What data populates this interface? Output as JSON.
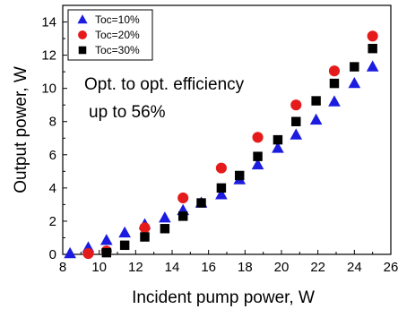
{
  "chart_data": {
    "type": "scatter",
    "xlabel": "Incident pump power, W",
    "ylabel": "Output power, W",
    "xlim": [
      8,
      26
    ],
    "ylim": [
      0,
      15
    ],
    "xticks": [
      "8",
      "10",
      "12",
      "14",
      "16",
      "18",
      "20",
      "22",
      "24",
      "26"
    ],
    "yticks": [
      "0",
      "2",
      "4",
      "6",
      "8",
      "10",
      "12",
      "14"
    ],
    "grid": false,
    "legend_position": "top-left",
    "annotation_lines": [
      "Opt. to opt. efficiency",
      "up to 56%"
    ],
    "series": [
      {
        "name": "Toc=10%",
        "marker": "triangle",
        "color": "#1c1ce0",
        "points": [
          [
            8.4,
            0.05
          ],
          [
            9.4,
            0.4
          ],
          [
            10.4,
            0.85
          ],
          [
            11.4,
            1.3
          ],
          [
            12.5,
            1.8
          ],
          [
            13.6,
            2.2
          ],
          [
            14.6,
            2.65
          ],
          [
            15.6,
            3.1
          ],
          [
            16.7,
            3.6
          ],
          [
            17.7,
            4.5
          ],
          [
            18.7,
            5.4
          ],
          [
            19.8,
            6.4
          ],
          [
            20.8,
            7.2
          ],
          [
            21.9,
            8.1
          ],
          [
            22.9,
            9.2
          ],
          [
            24.0,
            10.3
          ],
          [
            25.0,
            11.3
          ]
        ]
      },
      {
        "name": "Toc=20%",
        "marker": "circle",
        "color": "#e51b1b",
        "points": [
          [
            9.4,
            0.05
          ],
          [
            10.4,
            0.2
          ],
          [
            12.5,
            1.6
          ],
          [
            14.6,
            3.4
          ],
          [
            16.7,
            5.2
          ],
          [
            18.7,
            7.05
          ],
          [
            20.8,
            9.0
          ],
          [
            22.9,
            11.05
          ],
          [
            25.0,
            13.15
          ]
        ]
      },
      {
        "name": "Toc=30%",
        "marker": "square",
        "color": "#000000",
        "points": [
          [
            10.4,
            0.1
          ],
          [
            11.4,
            0.55
          ],
          [
            12.5,
            1.05
          ],
          [
            13.6,
            1.55
          ],
          [
            14.6,
            2.3
          ],
          [
            15.6,
            3.1
          ],
          [
            16.7,
            4.0
          ],
          [
            17.7,
            4.75
          ],
          [
            18.7,
            5.9
          ],
          [
            19.8,
            6.9
          ],
          [
            20.8,
            8.0
          ],
          [
            21.9,
            9.25
          ],
          [
            22.9,
            10.3
          ],
          [
            24.0,
            11.3
          ],
          [
            25.0,
            12.4
          ]
        ]
      }
    ]
  }
}
